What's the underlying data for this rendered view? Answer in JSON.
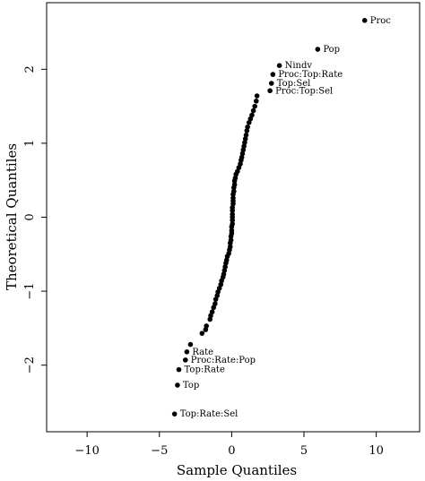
{
  "chart_data": {
    "type": "scatter",
    "title": "",
    "xlabel": "Sample Quantiles",
    "ylabel": "Theoretical Quantiles",
    "xlim": [
      -12.8,
      13.0
    ],
    "ylim": [
      -2.9,
      2.9
    ],
    "xticks": [
      -10,
      -5,
      0,
      5,
      10
    ],
    "yticks": [
      -2,
      -1,
      0,
      1,
      2
    ],
    "xtick_labels": [
      "−10",
      "−5",
      "0",
      "5",
      "10"
    ],
    "ytick_labels": [
      "−2",
      "−1",
      "0",
      "1",
      "2"
    ],
    "grid": false,
    "labeled_points": [
      {
        "label": "Proc",
        "x": 9.2,
        "y": 2.66
      },
      {
        "label": "Pop",
        "x": 5.95,
        "y": 2.27
      },
      {
        "label": "Nindv",
        "x": 3.3,
        "y": 2.05
      },
      {
        "label": "Proc:Top:Rate",
        "x": 2.85,
        "y": 1.93
      },
      {
        "label": "Top:Sel",
        "x": 2.75,
        "y": 1.81
      },
      {
        "label": "Proc:Top:Sel",
        "x": 2.65,
        "y": 1.71
      },
      {
        "label": "Rate",
        "x": -3.1,
        "y": -1.82
      },
      {
        "label": "Proc:Rate:Pop",
        "x": -3.2,
        "y": -1.93
      },
      {
        "label": "Top:Rate",
        "x": -3.65,
        "y": -2.06
      },
      {
        "label": "Top",
        "x": -3.75,
        "y": -2.27
      },
      {
        "label": "Top:Rate:Sel",
        "x": -3.95,
        "y": -2.66
      }
    ],
    "points": [
      {
        "x": -2.85,
        "y": -1.72
      },
      {
        "x": -2.05,
        "y": -1.57
      },
      {
        "x": -1.8,
        "y": -1.52
      },
      {
        "x": -1.75,
        "y": -1.47
      },
      {
        "x": -1.5,
        "y": -1.38
      },
      {
        "x": -1.45,
        "y": -1.33
      },
      {
        "x": -1.35,
        "y": -1.28
      },
      {
        "x": -1.25,
        "y": -1.22
      },
      {
        "x": -1.15,
        "y": -1.17
      },
      {
        "x": -1.1,
        "y": -1.11
      },
      {
        "x": -1.0,
        "y": -1.06
      },
      {
        "x": -0.95,
        "y": -1.01
      },
      {
        "x": -0.85,
        "y": -0.96
      },
      {
        "x": -0.75,
        "y": -0.91
      },
      {
        "x": -0.7,
        "y": -0.86
      },
      {
        "x": -0.6,
        "y": -0.81
      },
      {
        "x": -0.55,
        "y": -0.77
      },
      {
        "x": -0.5,
        "y": -0.72
      },
      {
        "x": -0.45,
        "y": -0.67
      },
      {
        "x": -0.4,
        "y": -0.62
      },
      {
        "x": -0.35,
        "y": -0.58
      },
      {
        "x": -0.3,
        "y": -0.53
      },
      {
        "x": -0.2,
        "y": -0.49
      },
      {
        "x": -0.15,
        "y": -0.44
      },
      {
        "x": -0.1,
        "y": -0.4
      },
      {
        "x": -0.1,
        "y": -0.35
      },
      {
        "x": -0.05,
        "y": -0.31
      },
      {
        "x": -0.05,
        "y": -0.26
      },
      {
        "x": 0.0,
        "y": -0.22
      },
      {
        "x": 0.0,
        "y": -0.18
      },
      {
        "x": 0.0,
        "y": -0.13
      },
      {
        "x": 0.05,
        "y": -0.09
      },
      {
        "x": 0.05,
        "y": -0.04
      },
      {
        "x": 0.05,
        "y": 0.0
      },
      {
        "x": 0.05,
        "y": 0.04
      },
      {
        "x": 0.05,
        "y": 0.09
      },
      {
        "x": 0.05,
        "y": 0.13
      },
      {
        "x": 0.1,
        "y": 0.18
      },
      {
        "x": 0.1,
        "y": 0.22
      },
      {
        "x": 0.1,
        "y": 0.26
      },
      {
        "x": 0.1,
        "y": 0.31
      },
      {
        "x": 0.15,
        "y": 0.35
      },
      {
        "x": 0.15,
        "y": 0.4
      },
      {
        "x": 0.2,
        "y": 0.44
      },
      {
        "x": 0.2,
        "y": 0.49
      },
      {
        "x": 0.25,
        "y": 0.53
      },
      {
        "x": 0.3,
        "y": 0.58
      },
      {
        "x": 0.4,
        "y": 0.62
      },
      {
        "x": 0.5,
        "y": 0.67
      },
      {
        "x": 0.6,
        "y": 0.72
      },
      {
        "x": 0.65,
        "y": 0.77
      },
      {
        "x": 0.7,
        "y": 0.81
      },
      {
        "x": 0.75,
        "y": 0.86
      },
      {
        "x": 0.8,
        "y": 0.91
      },
      {
        "x": 0.85,
        "y": 0.96
      },
      {
        "x": 0.9,
        "y": 1.01
      },
      {
        "x": 0.95,
        "y": 1.06
      },
      {
        "x": 1.0,
        "y": 1.11
      },
      {
        "x": 1.05,
        "y": 1.17
      },
      {
        "x": 1.1,
        "y": 1.22
      },
      {
        "x": 1.2,
        "y": 1.28
      },
      {
        "x": 1.3,
        "y": 1.33
      },
      {
        "x": 1.4,
        "y": 1.38
      },
      {
        "x": 1.5,
        "y": 1.44
      },
      {
        "x": 1.6,
        "y": 1.5
      },
      {
        "x": 1.7,
        "y": 1.57
      },
      {
        "x": 1.75,
        "y": 1.64
      }
    ]
  }
}
